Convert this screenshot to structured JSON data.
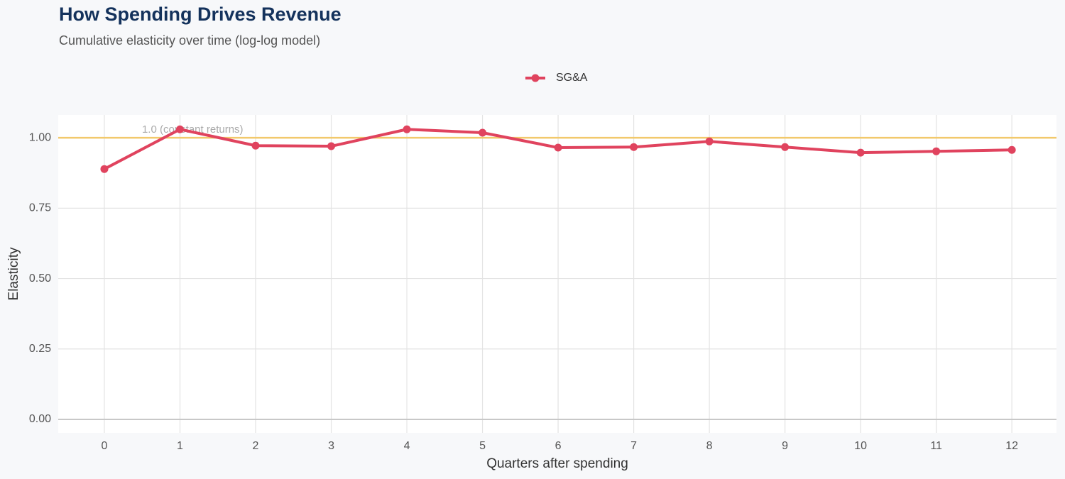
{
  "chart_data": {
    "type": "line",
    "title": "How Spending Drives Revenue",
    "subtitle": "Cumulative elasticity over time (log-log model)",
    "x_label": "Quarters after spending",
    "y_label": "Elasticity",
    "x": [
      0,
      1,
      2,
      3,
      4,
      5,
      6,
      7,
      8,
      9,
      10,
      11,
      12
    ],
    "series": [
      {
        "name": "SG&A",
        "color": "#e0435e",
        "values": [
          0.889,
          1.03,
          0.972,
          0.97,
          1.03,
          1.018,
          0.965,
          0.967,
          0.987,
          0.967,
          0.947,
          0.952,
          0.957
        ]
      }
    ],
    "xlim": [
      -0.61,
      12.59
    ],
    "ylim": [
      -0.048,
      1.081
    ],
    "xticks": [
      0,
      1,
      2,
      3,
      4,
      5,
      6,
      7,
      8,
      9,
      10,
      11,
      12
    ],
    "yticks": [
      {
        "value": 0,
        "label": "0.00"
      },
      {
        "value": 0.25,
        "label": "0.25"
      },
      {
        "value": 0.5,
        "label": "0.50"
      },
      {
        "value": 0.75,
        "label": "0.75"
      },
      {
        "value": 1,
        "label": "1.00"
      }
    ],
    "reference_line": {
      "value": 1,
      "label": "1.0 (constant returns)",
      "color": "#f2c96b"
    },
    "grid": true,
    "legend_position": "top"
  }
}
